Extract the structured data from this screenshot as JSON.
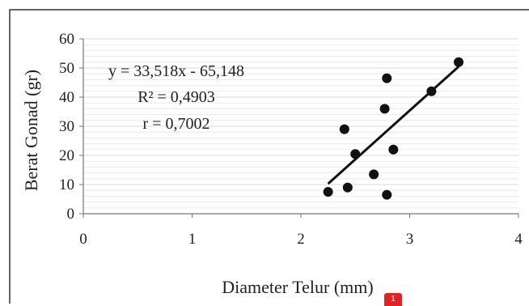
{
  "chart_data": {
    "type": "scatter",
    "xlabel": "Diameter Telur (mm)",
    "ylabel": "Berat Gonad (gr)",
    "xlim": [
      0,
      4
    ],
    "ylim": [
      0,
      60
    ],
    "xticks": [
      0,
      1,
      2,
      3,
      4
    ],
    "yticks": [
      0,
      10,
      20,
      30,
      40,
      50,
      60
    ],
    "grid": true,
    "points": [
      {
        "x": 2.25,
        "y": 7.5
      },
      {
        "x": 2.43,
        "y": 9
      },
      {
        "x": 2.4,
        "y": 29
      },
      {
        "x": 2.5,
        "y": 20.5
      },
      {
        "x": 2.67,
        "y": 13.5
      },
      {
        "x": 2.77,
        "y": 36
      },
      {
        "x": 2.79,
        "y": 46.5
      },
      {
        "x": 2.79,
        "y": 6.5
      },
      {
        "x": 2.85,
        "y": 22
      },
      {
        "x": 3.2,
        "y": 42
      },
      {
        "x": 3.45,
        "y": 52
      }
    ],
    "trendline": {
      "slope": 33.518,
      "intercept": -65.148,
      "x_range": [
        2.25,
        3.45
      ]
    },
    "annotations": {
      "equation": "y = 33,518x - 65,148",
      "r_squared": "R² = 0,4903",
      "r": "r = 0,7002"
    },
    "colors": {
      "points": "#111111",
      "line": "#111111",
      "grid": "#d9d9d9"
    }
  },
  "badge": {
    "label": "1",
    "color": "#e02424"
  }
}
